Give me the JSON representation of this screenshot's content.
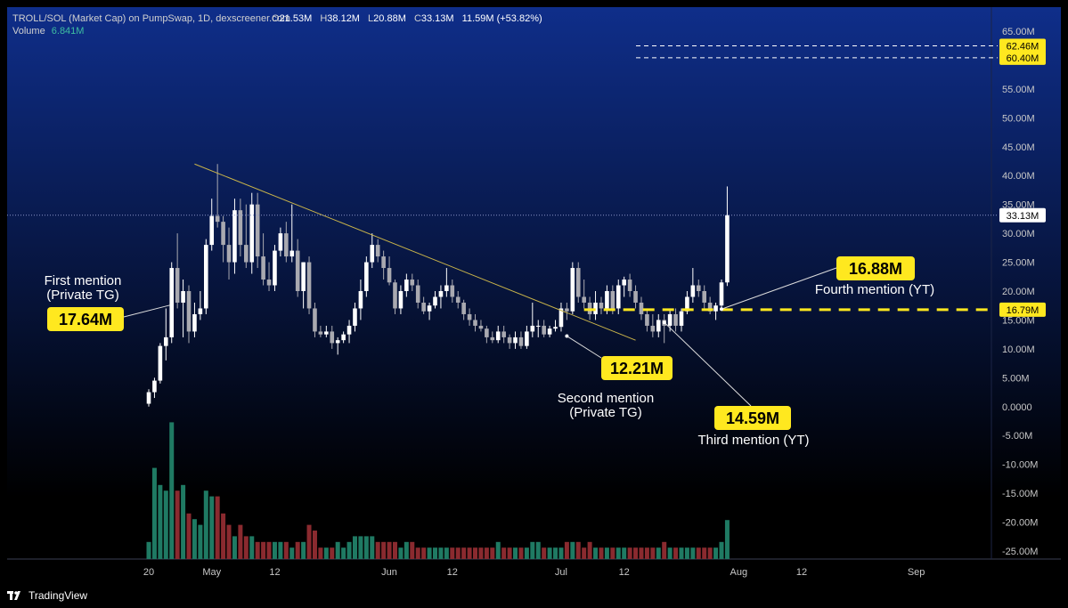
{
  "header": {
    "symbol_line": "TROLL/SOL (Market Cap) on PumpSwap, 1D, dexscreener.com",
    "o_label": "O",
    "o_value": "21.53M",
    "h_label": "H",
    "h_value": "38.12M",
    "l_label": "L",
    "l_value": "20.88M",
    "c_label": "C",
    "c_value": "33.13M",
    "change": "11.59M (+53.82%)",
    "volume_label": "Volume",
    "volume_value": "6.841M"
  },
  "footer": {
    "brand": "TradingView"
  },
  "colors": {
    "bg_top": "#0f2e8a",
    "bg_bottom": "#000000",
    "candle_up": "#ffffff",
    "candle_down": "#a9a9b0",
    "vol_up": "#1f7a63",
    "vol_down": "#8a2a2f",
    "callout_bg": "#ffe81f",
    "annotation_text": "#ffffff",
    "trendline": "#c9b44a",
    "level_line": "#ffe81f",
    "axis_text": "#c8c8c8"
  },
  "chart_data": {
    "type": "candlestick",
    "y_unit": "M",
    "ylim": [
      -25,
      65
    ],
    "y_ticks": [
      "65.00M",
      "60.00M",
      "55.00M",
      "50.00M",
      "45.00M",
      "40.00M",
      "35.00M",
      "30.00M",
      "25.00M",
      "20.00M",
      "15.00M",
      "10.00M",
      "5.00M",
      "0.0000",
      "-5.00M",
      "-10.00M",
      "-15.00M",
      "-20.00M",
      "-25.00M"
    ],
    "x_ticks": [
      {
        "label": "20",
        "day": 0
      },
      {
        "label": "May",
        "day": 11
      },
      {
        "label": "12",
        "day": 22
      },
      {
        "label": "Jun",
        "day": 42
      },
      {
        "label": "12",
        "day": 53
      },
      {
        "label": "Jul",
        "day": 72
      },
      {
        "label": "12",
        "day": 83
      },
      {
        "label": "Aug",
        "day": 103
      },
      {
        "label": "12",
        "day": 114
      },
      {
        "label": "Sep",
        "day": 134
      }
    ],
    "candles": [
      {
        "o": 0.5,
        "h": 3,
        "l": 0,
        "c": 2.5,
        "v": 3
      },
      {
        "o": 2.5,
        "h": 5,
        "l": 1.5,
        "c": 4.5,
        "v": 16
      },
      {
        "o": 4.5,
        "h": 11,
        "l": 4,
        "c": 10.5,
        "v": 13
      },
      {
        "o": 10.5,
        "h": 17,
        "l": 8,
        "c": 12,
        "v": 12
      },
      {
        "o": 12,
        "h": 25,
        "l": 11,
        "c": 24,
        "v": 24
      },
      {
        "o": 24,
        "h": 30,
        "l": 17,
        "c": 18,
        "v": 12
      },
      {
        "o": 18,
        "h": 22,
        "l": 12,
        "c": 20,
        "v": 13
      },
      {
        "o": 20,
        "h": 21,
        "l": 11,
        "c": 13,
        "v": 8
      },
      {
        "o": 13,
        "h": 18,
        "l": 12,
        "c": 16,
        "v": 7
      },
      {
        "o": 16,
        "h": 20,
        "l": 15,
        "c": 17,
        "v": 6
      },
      {
        "o": 17,
        "h": 29,
        "l": 16,
        "c": 28,
        "v": 12
      },
      {
        "o": 28,
        "h": 36,
        "l": 27,
        "c": 33,
        "v": 11
      },
      {
        "o": 33,
        "h": 42,
        "l": 31,
        "c": 32,
        "v": 11
      },
      {
        "o": 32,
        "h": 33,
        "l": 25,
        "c": 28,
        "v": 8
      },
      {
        "o": 28,
        "h": 31,
        "l": 22,
        "c": 25,
        "v": 6
      },
      {
        "o": 25,
        "h": 36,
        "l": 23,
        "c": 34,
        "v": 4
      },
      {
        "o": 34,
        "h": 36,
        "l": 26,
        "c": 28,
        "v": 6
      },
      {
        "o": 28,
        "h": 35,
        "l": 24,
        "c": 25,
        "v": 4
      },
      {
        "o": 25,
        "h": 37,
        "l": 23,
        "c": 35,
        "v": 4
      },
      {
        "o": 35,
        "h": 37,
        "l": 24,
        "c": 26,
        "v": 3
      },
      {
        "o": 26,
        "h": 30,
        "l": 21,
        "c": 22,
        "v": 3
      },
      {
        "o": 22,
        "h": 25,
        "l": 20,
        "c": 21,
        "v": 3
      },
      {
        "o": 21,
        "h": 28,
        "l": 20,
        "c": 27,
        "v": 3
      },
      {
        "o": 27,
        "h": 31,
        "l": 26,
        "c": 30,
        "v": 3
      },
      {
        "o": 30,
        "h": 32,
        "l": 25,
        "c": 26,
        "v": 3
      },
      {
        "o": 26,
        "h": 35,
        "l": 25,
        "c": 27,
        "v": 2
      },
      {
        "o": 27,
        "h": 29,
        "l": 19,
        "c": 20,
        "v": 3
      },
      {
        "o": 20,
        "h": 25,
        "l": 17,
        "c": 25,
        "v": 3
      },
      {
        "o": 25,
        "h": 26,
        "l": 16,
        "c": 17,
        "v": 6
      },
      {
        "o": 17,
        "h": 18,
        "l": 12,
        "c": 13,
        "v": 5
      },
      {
        "o": 13,
        "h": 14,
        "l": 12,
        "c": 12.5,
        "v": 2
      },
      {
        "o": 12.5,
        "h": 14,
        "l": 12,
        "c": 13,
        "v": 2
      },
      {
        "o": 13,
        "h": 14,
        "l": 10,
        "c": 11,
        "v": 2
      },
      {
        "o": 11,
        "h": 12,
        "l": 9,
        "c": 11.5,
        "v": 3
      },
      {
        "o": 11.5,
        "h": 13,
        "l": 11,
        "c": 12.5,
        "v": 2
      },
      {
        "o": 12.5,
        "h": 15,
        "l": 11,
        "c": 14,
        "v": 3
      },
      {
        "o": 14,
        "h": 18,
        "l": 13,
        "c": 17,
        "v": 4
      },
      {
        "o": 17,
        "h": 22,
        "l": 15,
        "c": 20,
        "v": 4
      },
      {
        "o": 20,
        "h": 26,
        "l": 19,
        "c": 25,
        "v": 4
      },
      {
        "o": 25,
        "h": 30,
        "l": 24,
        "c": 28,
        "v": 4
      },
      {
        "o": 28,
        "h": 29,
        "l": 25,
        "c": 26,
        "v": 3
      },
      {
        "o": 26,
        "h": 27,
        "l": 22,
        "c": 24,
        "v": 3
      },
      {
        "o": 24,
        "h": 26,
        "l": 21,
        "c": 21.5,
        "v": 3
      },
      {
        "o": 21.5,
        "h": 22,
        "l": 16,
        "c": 17,
        "v": 3
      },
      {
        "o": 17,
        "h": 21,
        "l": 16,
        "c": 20,
        "v": 2
      },
      {
        "o": 20,
        "h": 23,
        "l": 19,
        "c": 22,
        "v": 3
      },
      {
        "o": 22,
        "h": 23,
        "l": 20,
        "c": 21,
        "v": 3
      },
      {
        "o": 21,
        "h": 22,
        "l": 17,
        "c": 18,
        "v": 2
      },
      {
        "o": 18,
        "h": 19,
        "l": 16,
        "c": 16.5,
        "v": 2
      },
      {
        "o": 16.5,
        "h": 18,
        "l": 15,
        "c": 17.5,
        "v": 2
      },
      {
        "o": 17.5,
        "h": 20,
        "l": 17,
        "c": 19,
        "v": 2
      },
      {
        "o": 19,
        "h": 21,
        "l": 17,
        "c": 20,
        "v": 2
      },
      {
        "o": 20,
        "h": 24,
        "l": 19,
        "c": 21,
        "v": 2
      },
      {
        "o": 21,
        "h": 22,
        "l": 18,
        "c": 19,
        "v": 2
      },
      {
        "o": 19,
        "h": 20,
        "l": 17,
        "c": 18,
        "v": 2
      },
      {
        "o": 18,
        "h": 18.5,
        "l": 15,
        "c": 16,
        "v": 2
      },
      {
        "o": 16,
        "h": 17,
        "l": 14,
        "c": 15,
        "v": 2
      },
      {
        "o": 15,
        "h": 16,
        "l": 13,
        "c": 14,
        "v": 2
      },
      {
        "o": 14,
        "h": 15,
        "l": 13,
        "c": 13.5,
        "v": 2
      },
      {
        "o": 13.5,
        "h": 14,
        "l": 11,
        "c": 12,
        "v": 2
      },
      {
        "o": 12,
        "h": 13,
        "l": 11,
        "c": 11.5,
        "v": 2
      },
      {
        "o": 11.5,
        "h": 14,
        "l": 11,
        "c": 13,
        "v": 3
      },
      {
        "o": 13,
        "h": 14,
        "l": 11,
        "c": 12,
        "v": 2
      },
      {
        "o": 12,
        "h": 12.5,
        "l": 10,
        "c": 11,
        "v": 2
      },
      {
        "o": 11,
        "h": 13,
        "l": 10,
        "c": 12,
        "v": 2
      },
      {
        "o": 12,
        "h": 13,
        "l": 10,
        "c": 10.5,
        "v": 2
      },
      {
        "o": 10.5,
        "h": 14,
        "l": 10,
        "c": 13,
        "v": 2
      },
      {
        "o": 13,
        "h": 18,
        "l": 12,
        "c": 14,
        "v": 3
      },
      {
        "o": 14,
        "h": 15,
        "l": 12,
        "c": 14,
        "v": 3
      },
      {
        "o": 14,
        "h": 15,
        "l": 12,
        "c": 12.5,
        "v": 2
      },
      {
        "o": 12.5,
        "h": 14,
        "l": 12,
        "c": 13.5,
        "v": 2
      },
      {
        "o": 13.5,
        "h": 15,
        "l": 13,
        "c": 13.8,
        "v": 2
      },
      {
        "o": 13.8,
        "h": 18,
        "l": 13,
        "c": 17,
        "v": 2
      },
      {
        "o": 17,
        "h": 18,
        "l": 15,
        "c": 16.5,
        "v": 3
      },
      {
        "o": 16.5,
        "h": 25,
        "l": 16,
        "c": 24,
        "v": 3
      },
      {
        "o": 24,
        "h": 25,
        "l": 18,
        "c": 19,
        "v": 3
      },
      {
        "o": 19,
        "h": 22,
        "l": 17,
        "c": 18,
        "v": 2
      },
      {
        "o": 18,
        "h": 19,
        "l": 15,
        "c": 16,
        "v": 3
      },
      {
        "o": 16,
        "h": 20,
        "l": 15,
        "c": 18,
        "v": 2
      },
      {
        "o": 18,
        "h": 19,
        "l": 16,
        "c": 17,
        "v": 2
      },
      {
        "o": 17,
        "h": 21,
        "l": 16,
        "c": 20,
        "v": 2
      },
      {
        "o": 20,
        "h": 21,
        "l": 16,
        "c": 17,
        "v": 2
      },
      {
        "o": 17,
        "h": 22,
        "l": 16,
        "c": 21,
        "v": 2
      },
      {
        "o": 21,
        "h": 22.5,
        "l": 19,
        "c": 22,
        "v": 2
      },
      {
        "o": 22,
        "h": 23,
        "l": 19,
        "c": 20,
        "v": 2
      },
      {
        "o": 20,
        "h": 21,
        "l": 17,
        "c": 18,
        "v": 2
      },
      {
        "o": 18,
        "h": 19,
        "l": 15,
        "c": 16,
        "v": 2
      },
      {
        "o": 16,
        "h": 17,
        "l": 13,
        "c": 14,
        "v": 2
      },
      {
        "o": 14,
        "h": 16,
        "l": 12,
        "c": 13,
        "v": 2
      },
      {
        "o": 13,
        "h": 16,
        "l": 12,
        "c": 15,
        "v": 2
      },
      {
        "o": 15,
        "h": 16,
        "l": 11,
        "c": 14,
        "v": 3
      },
      {
        "o": 14,
        "h": 17,
        "l": 13,
        "c": 16,
        "v": 2
      },
      {
        "o": 16,
        "h": 17,
        "l": 13,
        "c": 14,
        "v": 2
      },
      {
        "o": 14,
        "h": 17,
        "l": 13,
        "c": 16.5,
        "v": 2
      },
      {
        "o": 16.5,
        "h": 20,
        "l": 16,
        "c": 19,
        "v": 2
      },
      {
        "o": 19,
        "h": 24,
        "l": 18,
        "c": 21,
        "v": 2
      },
      {
        "o": 21,
        "h": 22,
        "l": 19,
        "c": 20,
        "v": 2
      },
      {
        "o": 20,
        "h": 21,
        "l": 17,
        "c": 18,
        "v": 2
      },
      {
        "o": 18,
        "h": 19,
        "l": 16,
        "c": 16.5,
        "v": 2
      },
      {
        "o": 16.5,
        "h": 18,
        "l": 15,
        "c": 17.5,
        "v": 2
      },
      {
        "o": 17.5,
        "h": 22,
        "l": 17,
        "c": 21.5,
        "v": 3
      },
      {
        "o": 21.5,
        "h": 38.12,
        "l": 20.88,
        "c": 33.13,
        "v": 6.841
      }
    ],
    "trendline": {
      "from": {
        "day": 8,
        "value": 42
      },
      "to": {
        "day": 85,
        "value": 11.5
      }
    },
    "price_labels": [
      {
        "text": "62.46M",
        "value": 62.46,
        "style": "dashed"
      },
      {
        "text": "60.40M",
        "value": 60.4,
        "style": "dashed"
      },
      {
        "text": "33.13M",
        "value": 33.13,
        "style": "dotted"
      },
      {
        "text": "16.79M",
        "value": 16.79,
        "style": "level"
      }
    ],
    "annotations": [
      {
        "value_label": "17.64M",
        "text": "First mention\n(Private TG)",
        "point": {
          "day": 4,
          "value": 17.64
        }
      },
      {
        "value_label": "12.21M",
        "text": "Second mention\n(Private TG)",
        "point": {
          "day": 73,
          "value": 12.21
        }
      },
      {
        "value_label": "14.59M",
        "text": "Third mention (YT)",
        "point": {
          "day": 90,
          "value": 14.59
        }
      },
      {
        "value_label": "16.88M",
        "text": "Fourth mention (YT)",
        "point": {
          "day": 100,
          "value": 16.88
        }
      }
    ]
  }
}
